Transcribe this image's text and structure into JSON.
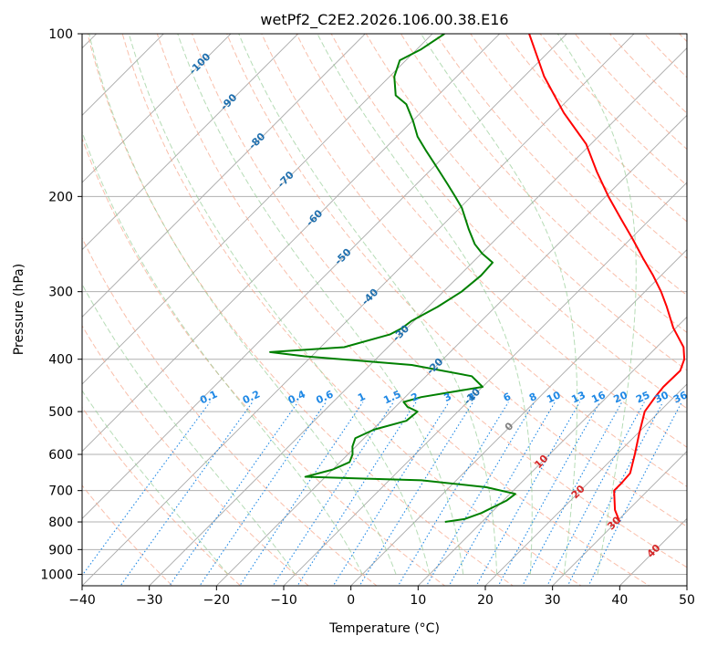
{
  "chart_data": {
    "type": "skew-t",
    "title": "wetPf2_C2E2.2026.106.00.38.E16",
    "xlabel": "Temperature (°C)",
    "ylabel": "Pressure (hPa)",
    "xlim": [
      -40,
      50
    ],
    "ylim": [
      1050,
      100
    ],
    "x_ticks": [
      -40,
      -30,
      -20,
      -10,
      0,
      10,
      20,
      30,
      40,
      50
    ],
    "y_ticks": [
      100,
      200,
      300,
      400,
      500,
      600,
      700,
      800,
      900,
      1000
    ],
    "isotherms_grid": [
      -150,
      -140,
      -130,
      -120,
      -110,
      -100,
      -90,
      -80,
      -70,
      -60,
      -50,
      -40,
      -30,
      -20,
      -10,
      0,
      10,
      20,
      30,
      40,
      50
    ],
    "isotherm_labels": [
      {
        "value": -100,
        "label": "-100",
        "p": 113
      },
      {
        "value": -90,
        "label": "-90",
        "p": 133
      },
      {
        "value": -80,
        "label": "-80",
        "p": 157
      },
      {
        "value": -70,
        "label": "-70",
        "p": 185
      },
      {
        "value": -60,
        "label": "-60",
        "p": 218
      },
      {
        "value": -50,
        "label": "-50",
        "p": 257
      },
      {
        "value": -40,
        "label": "-40",
        "p": 305
      },
      {
        "value": -30,
        "label": "-30",
        "p": 356
      },
      {
        "value": -20,
        "label": "-20",
        "p": 410
      },
      {
        "value": -10,
        "label": "-10",
        "p": 466
      },
      {
        "value": 0,
        "label": "0",
        "p": 530
      },
      {
        "value": 10,
        "label": "10",
        "p": 615
      },
      {
        "value": 20,
        "label": "20",
        "p": 700
      },
      {
        "value": 30,
        "label": "30",
        "p": 800
      },
      {
        "value": 40,
        "label": "40",
        "p": 900
      }
    ],
    "mixing_ratio_lines": [
      "0.1",
      "0.2",
      "0.4",
      "0.6",
      "1",
      "1.5",
      "2",
      "3",
      "4",
      "6",
      "8",
      "10",
      "13",
      "16",
      "20",
      "25",
      "30",
      "36"
    ],
    "mixing_ratio_label_pressure": 480,
    "dry_adiabats_theta_C": [
      -30,
      -20,
      -10,
      0,
      10,
      20,
      30,
      40,
      50,
      60,
      70,
      80,
      90,
      100,
      110,
      120,
      130,
      140,
      150,
      160,
      170,
      180,
      190,
      200
    ],
    "moist_adiabats_C": [
      -20,
      -10,
      0,
      5,
      10,
      15,
      20,
      25,
      30,
      35
    ],
    "series": [
      {
        "name": "Temperature",
        "color": "#ff0000",
        "points": [
          {
            "p": 800,
            "t": 30.5
          },
          {
            "p": 760,
            "t": 28.0
          },
          {
            "p": 700,
            "t": 25.0
          },
          {
            "p": 680,
            "t": 25.0
          },
          {
            "p": 650,
            "t": 24.8
          },
          {
            "p": 600,
            "t": 22.7
          },
          {
            "p": 550,
            "t": 20.3
          },
          {
            "p": 500,
            "t": 17.8
          },
          {
            "p": 470,
            "t": 17.2
          },
          {
            "p": 450,
            "t": 16.9
          },
          {
            "p": 420,
            "t": 17.0
          },
          {
            "p": 400,
            "t": 15.9
          },
          {
            "p": 380,
            "t": 14.0
          },
          {
            "p": 350,
            "t": 9.6
          },
          {
            "p": 320,
            "t": 5.5
          },
          {
            "p": 300,
            "t": 2.4
          },
          {
            "p": 280,
            "t": -1.2
          },
          {
            "p": 260,
            "t": -5.3
          },
          {
            "p": 240,
            "t": -9.6
          },
          {
            "p": 220,
            "t": -14.4
          },
          {
            "p": 200,
            "t": -19.6
          },
          {
            "p": 180,
            "t": -25.0
          },
          {
            "p": 160,
            "t": -30.7
          },
          {
            "p": 140,
            "t": -38.7
          },
          {
            "p": 120,
            "t": -47.0
          },
          {
            "p": 110,
            "t": -51.1
          },
          {
            "p": 100,
            "t": -55.6
          }
        ]
      },
      {
        "name": "Dewpoint",
        "color": "#008000",
        "points": [
          {
            "p": 800,
            "t": 4.5
          },
          {
            "p": 790,
            "t": 7.0
          },
          {
            "p": 770,
            "t": 8.6
          },
          {
            "p": 730,
            "t": 10.5
          },
          {
            "p": 710,
            "t": 10.8
          },
          {
            "p": 690,
            "t": 5.5
          },
          {
            "p": 670,
            "t": -5.2
          },
          {
            "p": 660,
            "t": -23.0
          },
          {
            "p": 640,
            "t": -20.0
          },
          {
            "p": 620,
            "t": -18.6
          },
          {
            "p": 600,
            "t": -19.3
          },
          {
            "p": 580,
            "t": -20.5
          },
          {
            "p": 560,
            "t": -21.3
          },
          {
            "p": 540,
            "t": -19.8
          },
          {
            "p": 520,
            "t": -16.3
          },
          {
            "p": 500,
            "t": -16.0
          },
          {
            "p": 490,
            "t": -18.2
          },
          {
            "p": 480,
            "t": -19.5
          },
          {
            "p": 470,
            "t": -17.6
          },
          {
            "p": 450,
            "t": -10.0
          },
          {
            "p": 430,
            "t": -13.2
          },
          {
            "p": 410,
            "t": -23.8
          },
          {
            "p": 395,
            "t": -41.0
          },
          {
            "p": 388,
            "t": -46.8
          },
          {
            "p": 380,
            "t": -36.5
          },
          {
            "p": 360,
            "t": -31.6
          },
          {
            "p": 350,
            "t": -30.7
          },
          {
            "p": 340,
            "t": -30.4
          },
          {
            "p": 320,
            "t": -28.6
          },
          {
            "p": 300,
            "t": -27.3
          },
          {
            "p": 280,
            "t": -26.8
          },
          {
            "p": 265,
            "t": -27.0
          },
          {
            "p": 255,
            "t": -29.9
          },
          {
            "p": 245,
            "t": -32.4
          },
          {
            "p": 230,
            "t": -35.5
          },
          {
            "p": 210,
            "t": -39.7
          },
          {
            "p": 200,
            "t": -42.4
          },
          {
            "p": 190,
            "t": -45.3
          },
          {
            "p": 175,
            "t": -50.0
          },
          {
            "p": 165,
            "t": -53.4
          },
          {
            "p": 155,
            "t": -56.9
          },
          {
            "p": 145,
            "t": -59.9
          },
          {
            "p": 135,
            "t": -63.4
          },
          {
            "p": 130,
            "t": -66.3
          },
          {
            "p": 120,
            "t": -69.3
          },
          {
            "p": 112,
            "t": -70.9
          },
          {
            "p": 107,
            "t": -69.4
          },
          {
            "p": 100,
            "t": -68.2
          }
        ]
      }
    ]
  }
}
